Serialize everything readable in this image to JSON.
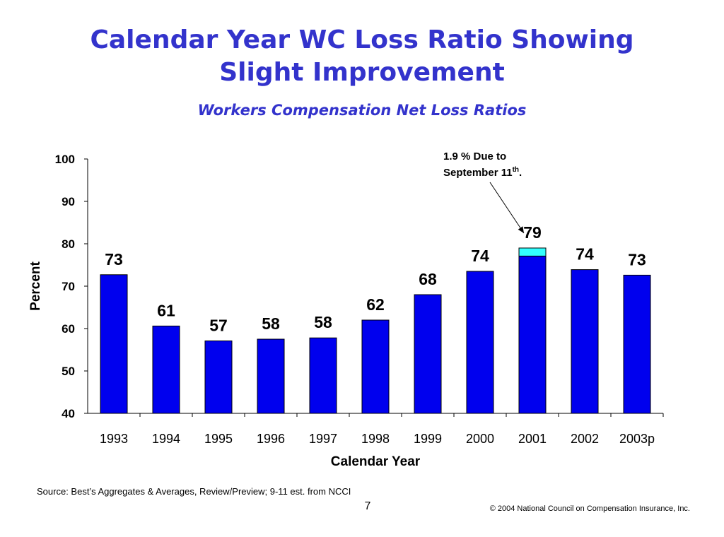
{
  "page": {
    "title_lines": [
      "Calendar Year WC Loss Ratio Showing",
      "Slight Improvement"
    ],
    "subtitle": "Workers Compensation Net Loss Ratios",
    "source": "Source: Best’s Aggregates & Averages, Review/Preview; 9-11 est. from NCCI",
    "page_number": "7",
    "copyright": "© 2004 National Council on Compensation Insurance, Inc."
  },
  "chart_data": {
    "type": "bar",
    "xlabel": "Calendar Year",
    "ylabel": "Percent",
    "ylim": [
      40,
      100
    ],
    "yticks": [
      40,
      50,
      60,
      70,
      80,
      90,
      100
    ],
    "categories": [
      "1993",
      "1994",
      "1995",
      "1996",
      "1997",
      "1998",
      "1999",
      "2000",
      "2001",
      "2002",
      "2003p"
    ],
    "series": [
      {
        "values": [
          72.7,
          60.6,
          57.1,
          57.5,
          57.8,
          62.0,
          68.0,
          73.5,
          77.1,
          73.9,
          72.6
        ],
        "color": "#0000ee"
      },
      {
        "values": [
          0,
          0,
          0,
          0,
          0,
          0,
          0,
          0,
          1.9,
          0,
          0
        ],
        "color": "#33ffff"
      }
    ],
    "data_labels": [
      "73",
      "61",
      "57",
      "58",
      "58",
      "62",
      "68",
      "74",
      "79",
      "74",
      "73"
    ],
    "annotation": {
      "line1": "1.9 % Due to",
      "line2_main": "September 11",
      "line2_sup": "th",
      "line2_end": ".",
      "category": "2001"
    },
    "grid": false,
    "legend": "none"
  }
}
